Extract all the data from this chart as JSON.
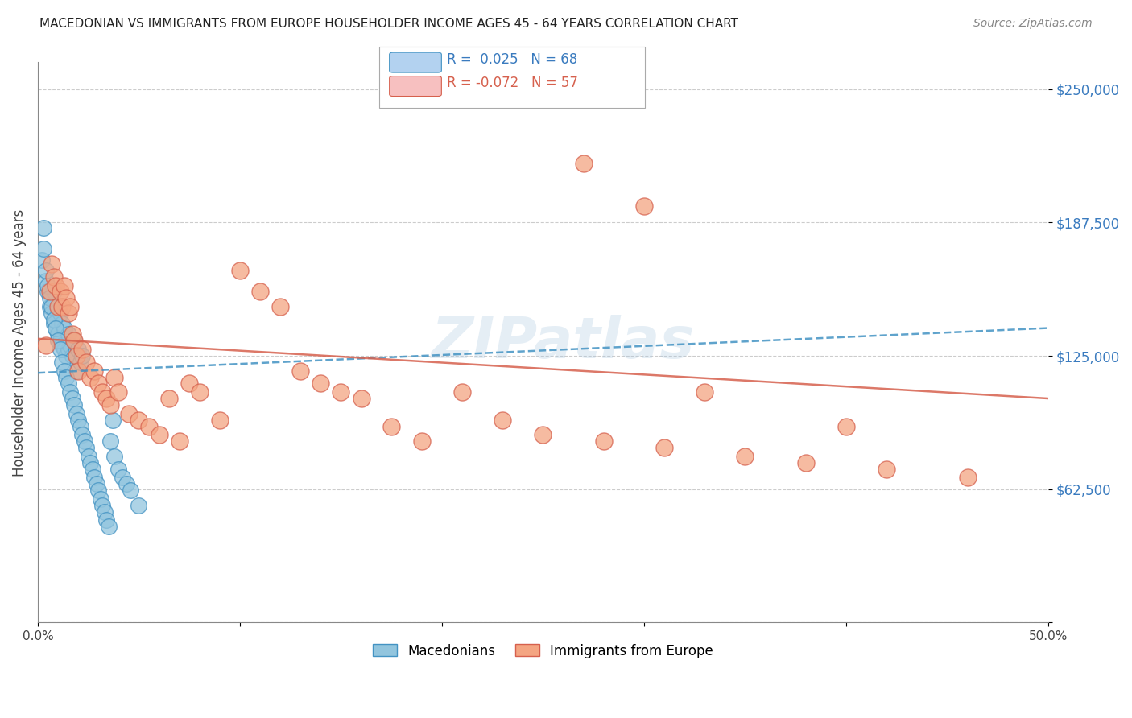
{
  "title": "MACEDONIAN VS IMMIGRANTS FROM EUROPE HOUSEHOLDER INCOME AGES 45 - 64 YEARS CORRELATION CHART",
  "source": "Source: ZipAtlas.com",
  "ylabel": "Householder Income Ages 45 - 64 years",
  "xlim": [
    0.0,
    0.5
  ],
  "ylim": [
    0,
    262500
  ],
  "yticks": [
    0,
    62500,
    125000,
    187500,
    250000
  ],
  "ytick_labels": [
    "",
    "$62,500",
    "$125,000",
    "$187,500",
    "$250,000"
  ],
  "xticks": [
    0.0,
    0.1,
    0.2,
    0.3,
    0.4,
    0.5
  ],
  "xtick_labels": [
    "0.0%",
    "",
    "",
    "",
    "",
    "50.0%"
  ],
  "macedonians_R": 0.025,
  "macedonians_N": 68,
  "immigrants_R": -0.072,
  "immigrants_N": 57,
  "blue_color": "#92c5de",
  "pink_color": "#f4a582",
  "blue_line_color": "#4393c3",
  "pink_line_color": "#d6604d",
  "watermark": "ZIPatlas",
  "mac_x": [
    0.002,
    0.003,
    0.004,
    0.005,
    0.006,
    0.007,
    0.008,
    0.008,
    0.009,
    0.01,
    0.01,
    0.011,
    0.011,
    0.012,
    0.012,
    0.013,
    0.013,
    0.014,
    0.015,
    0.015,
    0.016,
    0.017,
    0.018,
    0.019,
    0.02,
    0.021,
    0.022,
    0.003,
    0.004,
    0.005,
    0.006,
    0.007,
    0.008,
    0.009,
    0.01,
    0.011,
    0.012,
    0.013,
    0.014,
    0.015,
    0.016,
    0.017,
    0.018,
    0.019,
    0.02,
    0.021,
    0.022,
    0.023,
    0.024,
    0.025,
    0.026,
    0.027,
    0.028,
    0.029,
    0.03,
    0.031,
    0.032,
    0.033,
    0.034,
    0.035,
    0.036,
    0.037,
    0.038,
    0.04,
    0.042,
    0.044,
    0.046,
    0.05
  ],
  "mac_y": [
    170000,
    185000,
    160000,
    155000,
    148000,
    145000,
    140000,
    155000,
    138000,
    135000,
    148000,
    132000,
    145000,
    130000,
    140000,
    128000,
    138000,
    125000,
    135000,
    128000,
    130000,
    125000,
    132000,
    118000,
    128000,
    122000,
    125000,
    175000,
    165000,
    158000,
    152000,
    148000,
    142000,
    138000,
    132000,
    128000,
    122000,
    118000,
    115000,
    112000,
    108000,
    105000,
    102000,
    98000,
    95000,
    92000,
    88000,
    85000,
    82000,
    78000,
    75000,
    72000,
    68000,
    65000,
    62000,
    58000,
    55000,
    52000,
    48000,
    45000,
    85000,
    95000,
    78000,
    72000,
    68000,
    65000,
    62000,
    55000
  ],
  "imm_x": [
    0.004,
    0.006,
    0.007,
    0.008,
    0.009,
    0.01,
    0.011,
    0.012,
    0.013,
    0.014,
    0.015,
    0.016,
    0.017,
    0.018,
    0.019,
    0.02,
    0.022,
    0.024,
    0.026,
    0.028,
    0.03,
    0.032,
    0.034,
    0.036,
    0.038,
    0.04,
    0.045,
    0.05,
    0.055,
    0.06,
    0.065,
    0.07,
    0.075,
    0.08,
    0.09,
    0.1,
    0.11,
    0.12,
    0.13,
    0.14,
    0.15,
    0.16,
    0.175,
    0.19,
    0.21,
    0.23,
    0.25,
    0.28,
    0.31,
    0.35,
    0.38,
    0.42,
    0.46,
    0.27,
    0.3,
    0.33,
    0.4
  ],
  "imm_y": [
    130000,
    155000,
    168000,
    162000,
    158000,
    148000,
    155000,
    148000,
    158000,
    152000,
    145000,
    148000,
    135000,
    132000,
    125000,
    118000,
    128000,
    122000,
    115000,
    118000,
    112000,
    108000,
    105000,
    102000,
    115000,
    108000,
    98000,
    95000,
    92000,
    88000,
    105000,
    85000,
    112000,
    108000,
    95000,
    165000,
    155000,
    148000,
    118000,
    112000,
    108000,
    105000,
    92000,
    85000,
    108000,
    95000,
    88000,
    85000,
    82000,
    78000,
    75000,
    72000,
    68000,
    215000,
    195000,
    108000,
    92000
  ],
  "mac_trend_x": [
    0.0,
    0.5
  ],
  "mac_trend_y": [
    117000,
    138000
  ],
  "imm_trend_x": [
    0.0,
    0.5
  ],
  "imm_trend_y": [
    133000,
    105000
  ]
}
